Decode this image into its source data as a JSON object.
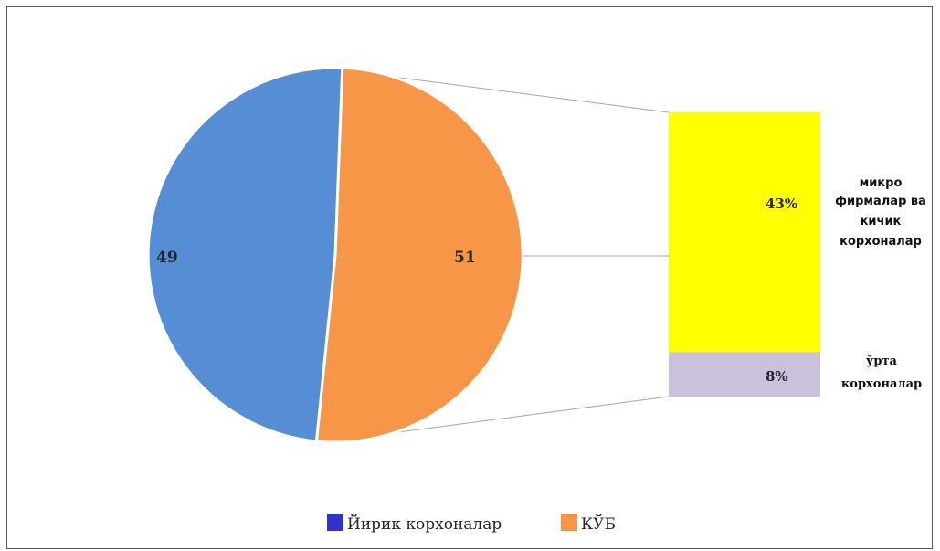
{
  "chart_data": {
    "type": "pie",
    "pie": {
      "slices": [
        {
          "label": "49",
          "value": 49,
          "color": "#558ed5"
        },
        {
          "label": "51",
          "value": 51,
          "color": "#f79646"
        }
      ]
    },
    "breakdown_of": "51",
    "breakdown": [
      {
        "label": "43%",
        "value": 43,
        "color": "#ffff00",
        "category_lines": [
          "микро",
          "фирмалар ва",
          "кичик",
          "корхоналар"
        ]
      },
      {
        "label": "8%",
        "value": 8,
        "color": "#ccc1da",
        "category_lines": [
          "ўрта",
          "корхоналар"
        ]
      }
    ],
    "legend": [
      {
        "name": "Йирик корхоналар",
        "color": "#3333cc"
      },
      {
        "name": "КЎБ",
        "color": "#f79646"
      }
    ],
    "legend_position": "bottom"
  }
}
